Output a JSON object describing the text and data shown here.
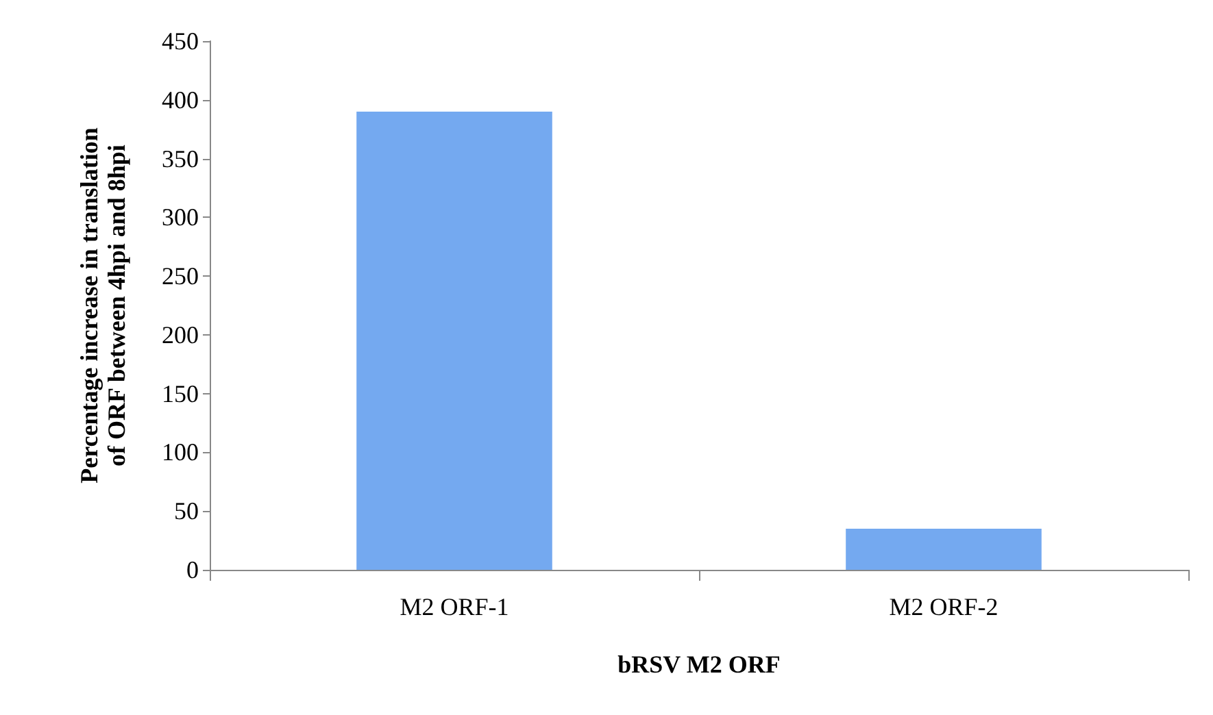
{
  "chart_data": {
    "type": "bar",
    "categories": [
      "M2 ORF-1",
      "M2 ORF-2"
    ],
    "values": [
      390,
      35
    ],
    "color": "#74a9f0",
    "xlabel": "bRSV M2 ORF",
    "ylabel": "Percentage increase in translation\nof ORF between 4hpi and 8hpi",
    "ylim": [
      0,
      450
    ],
    "yticks": [
      0,
      50,
      100,
      150,
      200,
      250,
      300,
      350,
      400,
      450
    ],
    "grid": false
  }
}
